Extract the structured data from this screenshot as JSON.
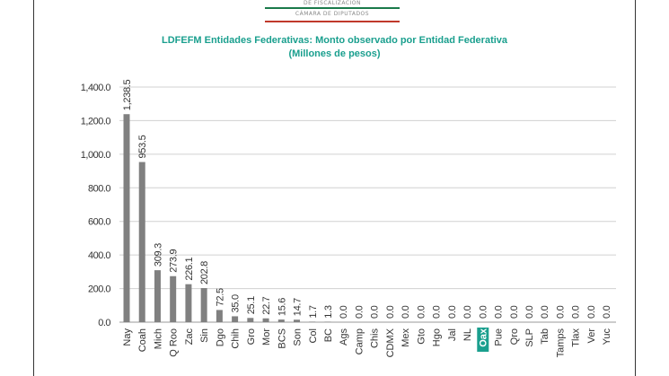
{
  "header": {
    "logo_top_text": "DE FISCALIZACIÓN",
    "logo_sub_text": "CÁMARA DE DIPUTADOS"
  },
  "chart_data": {
    "type": "bar",
    "title": "LDFEFM Entidades Federativas: Monto observado por Entidad Federativa",
    "subtitle": "(Millones de pesos)",
    "xlabel": "",
    "ylabel": "",
    "ylim": [
      0,
      1400
    ],
    "yticks": [
      "0.0",
      "200.0",
      "400.0",
      "600.0",
      "800.0",
      "1,000.0",
      "1,200.0",
      "1,400.0"
    ],
    "grid": true,
    "bar_color": "#808080",
    "highlight_category": "Oax",
    "highlight_color": "#1a9f8e",
    "categories": [
      "Nay",
      "Coah",
      "Mich",
      "Q Roo",
      "Zac",
      "Sin",
      "Dgo",
      "Chih",
      "Gro",
      "Mor",
      "BCS",
      "Son",
      "Col",
      "BC",
      "Ags",
      "Camp",
      "Chis",
      "CDMX",
      "Mex",
      "Gto",
      "Hgo",
      "Jal",
      "NL",
      "Oax",
      "Pue",
      "Qro",
      "SLP",
      "Tab",
      "Tamps",
      "Tlax",
      "Ver",
      "Yuc"
    ],
    "values": [
      1238.5,
      953.5,
      309.3,
      273.9,
      226.1,
      202.8,
      72.5,
      35.0,
      25.1,
      22.7,
      15.6,
      14.7,
      1.7,
      1.3,
      0,
      0,
      0,
      0,
      0,
      0,
      0,
      0,
      0,
      0,
      0,
      0,
      0,
      0,
      0,
      0,
      0,
      0
    ],
    "labels": [
      "1,238.5",
      "953.5",
      "309.3",
      "273.9",
      "226.1",
      "202.8",
      "72.5",
      "35.0",
      "25.1",
      "22.7",
      "15.6",
      "14.7",
      "1.7",
      "1.3",
      "0.0",
      "0.0",
      "0.0",
      "0.0",
      "0.0",
      "0.0",
      "0.0",
      "0.0",
      "0.0",
      "0.0",
      "0.0",
      "0.0",
      "0.0",
      "0.0",
      "0.0",
      "0.0",
      "0.0",
      "0.0"
    ]
  }
}
